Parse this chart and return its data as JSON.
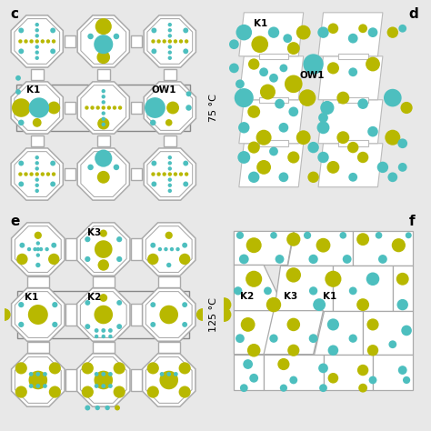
{
  "bg_color": "#e8e8e8",
  "panel_bg": "#ffffff",
  "cyan": "#4dbfbf",
  "yellow": "#b8b800",
  "frame_color": "#aaaaaa",
  "frame_inner": "#cccccc",
  "text_color": "#000000",
  "temp1": "75 °C",
  "temp2": "125 °C",
  "labels": [
    "c",
    "d",
    "e",
    "f"
  ]
}
